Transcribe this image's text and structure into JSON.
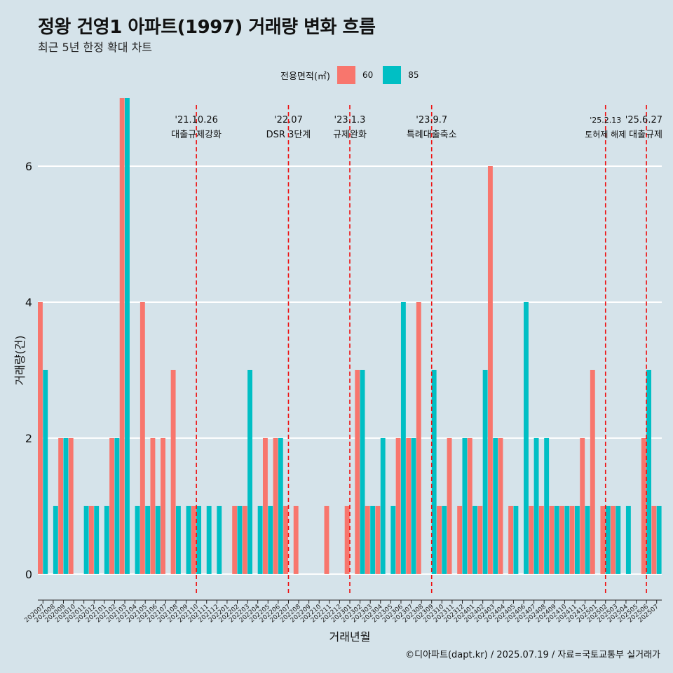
{
  "title": "정왕 건영1 아파트(1997) 거래량 변화 흐름",
  "subtitle": "최근 5년 한정 확대 차트",
  "legend": {
    "title": "전용면적(㎡)",
    "items": [
      {
        "label": "60",
        "color": "#f8766d"
      },
      {
        "label": "85",
        "color": "#00bfc4"
      }
    ]
  },
  "caption": "©디아파트(dapt.kr) / 2025.07.19 / 자료=국토교통부 실거래가",
  "chart_data": {
    "type": "bar",
    "xlabel": "거래년월",
    "ylabel": "거래량(건)",
    "ylim": [
      -0.3,
      7
    ],
    "yticks": [
      0,
      2,
      4,
      6
    ],
    "categories": [
      "202007",
      "202008",
      "202009",
      "202010",
      "202011",
      "202012",
      "202101",
      "202102",
      "202103",
      "202104",
      "202105",
      "202106",
      "202107",
      "202108",
      "202109",
      "202110",
      "202111",
      "202112",
      "202201",
      "202202",
      "202203",
      "202204",
      "202205",
      "202206",
      "202207",
      "202208",
      "202209",
      "202210",
      "202211",
      "202212",
      "202301",
      "202302",
      "202303",
      "202304",
      "202305",
      "202306",
      "202307",
      "202308",
      "202309",
      "202310",
      "202311",
      "202312",
      "202401",
      "202402",
      "202403",
      "202404",
      "202405",
      "202406",
      "202407",
      "202408",
      "202409",
      "202410",
      "202411",
      "202412",
      "202501",
      "202502",
      "202503",
      "202504",
      "202505",
      "202506",
      "202507"
    ],
    "series": [
      {
        "name": "60",
        "color": "#f8766d",
        "values": [
          4,
          0,
          2,
          2,
          0,
          1,
          0,
          2,
          7,
          0,
          4,
          2,
          2,
          3,
          0,
          1,
          0,
          0,
          0,
          1,
          1,
          0,
          2,
          2,
          1,
          1,
          0,
          0,
          1,
          0,
          1,
          3,
          1,
          1,
          0,
          2,
          2,
          4,
          0,
          1,
          2,
          1,
          2,
          1,
          6,
          2,
          1,
          0,
          1,
          1,
          1,
          1,
          1,
          2,
          3,
          1,
          1,
          0,
          0,
          2,
          1
        ]
      },
      {
        "name": "85",
        "color": "#00bfc4",
        "values": [
          3,
          1,
          2,
          0,
          1,
          1,
          1,
          2,
          7,
          1,
          1,
          1,
          0,
          1,
          1,
          1,
          1,
          1,
          0,
          1,
          3,
          1,
          1,
          2,
          0,
          0,
          0,
          0,
          0,
          0,
          0,
          3,
          1,
          2,
          1,
          4,
          2,
          0,
          3,
          1,
          0,
          2,
          1,
          3,
          2,
          0,
          1,
          4,
          2,
          2,
          1,
          1,
          1,
          1,
          0,
          1,
          1,
          1,
          0,
          3,
          1
        ]
      }
    ],
    "events": [
      {
        "index": 15,
        "date": "'21.10.26",
        "label": "대출규제강화"
      },
      {
        "index": 24,
        "date": "'22.07",
        "label": "DSR 3단계"
      },
      {
        "index": 30,
        "date": "'23.1.3",
        "label": "규제완화"
      },
      {
        "index": 38,
        "date": "'23.9.7",
        "label": "특례대출축소"
      },
      {
        "index": 55,
        "date": "'25.2.13",
        "label": "토허제 해제"
      },
      {
        "index": 59,
        "date": "'25.6.27",
        "label": "대출규제"
      }
    ]
  }
}
